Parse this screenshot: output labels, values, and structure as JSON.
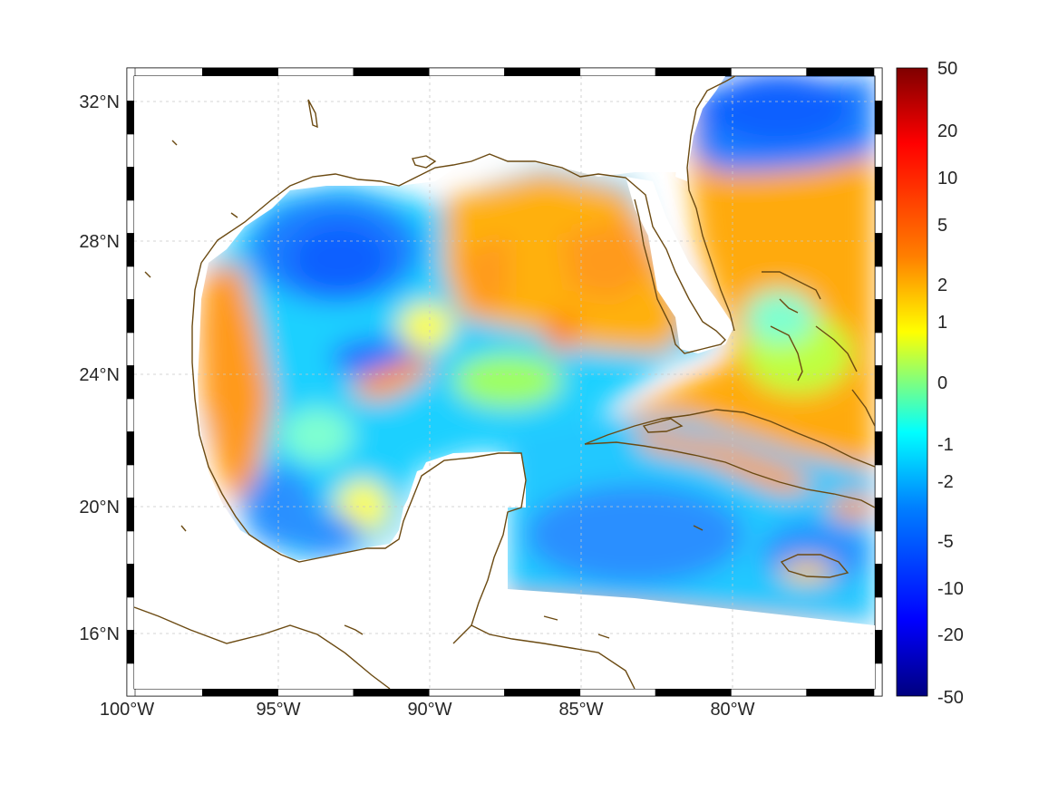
{
  "map": {
    "lat_labels": [
      "32°N",
      "28°N",
      "24°N",
      "20°N",
      "16°N"
    ],
    "lon_labels": [
      "100°W",
      "95°W",
      "90°W",
      "85°W",
      "80°W"
    ],
    "colorbar_labels": [
      "50",
      "20",
      "10",
      "5",
      "2",
      "1",
      "0",
      "-1",
      "-2",
      "-5",
      "-10",
      "-20",
      "-50"
    ],
    "colors": {
      "land_border": "#6b4a12",
      "grid": "#c8c8c8",
      "frame_dark": "#000000",
      "frame_light": "#ffffff"
    },
    "colormap": [
      "#00007f",
      "#0000ff",
      "#007fff",
      "#00ffff",
      "#7fff7f",
      "#ffff00",
      "#ff7f00",
      "#ff0000",
      "#7f0000"
    ]
  }
}
